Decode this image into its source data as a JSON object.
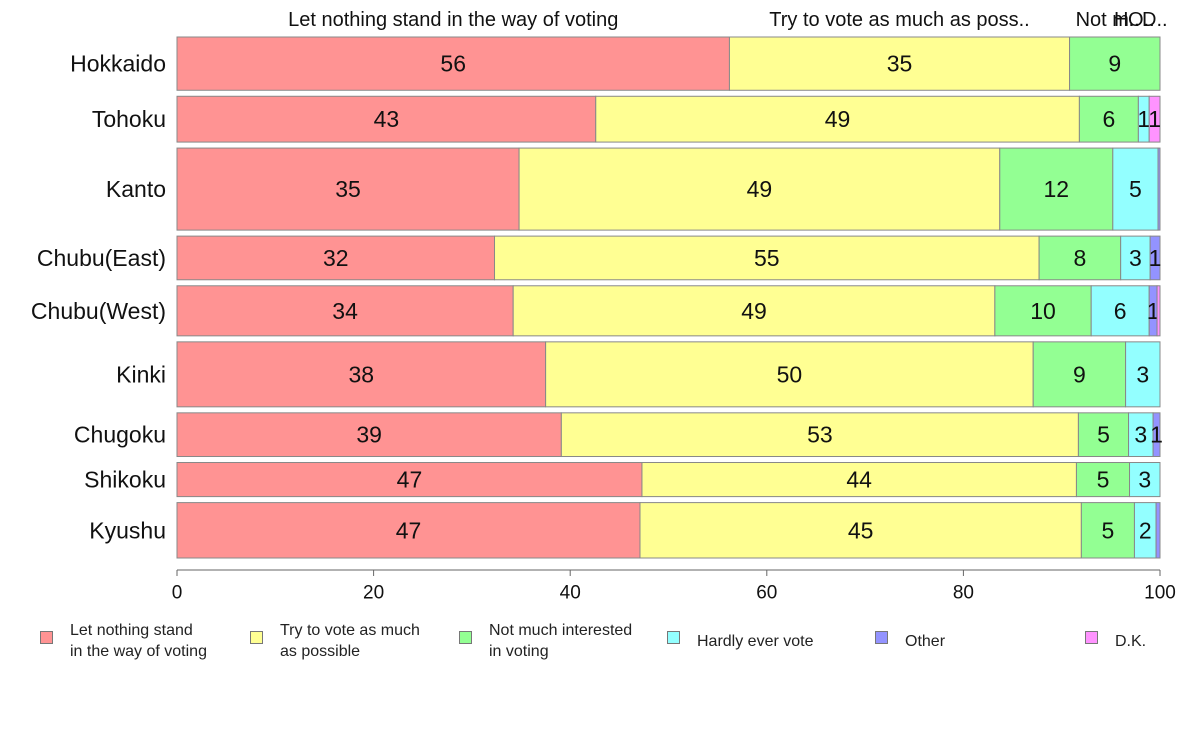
{
  "chart_data": {
    "type": "bar",
    "orientation": "horizontal",
    "stacked": true,
    "categories": [
      "Hokkaido",
      "Tohoku",
      "Kanto",
      "Chubu(East)",
      "Chubu(West)",
      "Kinki",
      "Chugoku",
      "Shikoku",
      "Kyushu"
    ],
    "series": [
      {
        "name": "Let nothing stand\nin the way of voting",
        "top_label": "Let nothing stand in the way of voting",
        "color": "#FF9393",
        "values": [
          56.2,
          42.6,
          34.8,
          32.3,
          34.2,
          37.5,
          39.1,
          47.3,
          47.1
        ],
        "labels": [
          "56",
          "43",
          "35",
          "32",
          "34",
          "38",
          "39",
          "47",
          "47"
        ]
      },
      {
        "name": "Try to vote as much\nas possible",
        "top_label": "Try to vote as much as poss..",
        "color": "#FFFF93",
        "values": [
          34.6,
          49.2,
          48.9,
          55.4,
          49.0,
          49.6,
          52.6,
          44.2,
          44.9
        ],
        "labels": [
          "35",
          "49",
          "49",
          "55",
          "49",
          "50",
          "53",
          "44",
          "45"
        ]
      },
      {
        "name": "Not much interested\nin voting",
        "top_label": "Not m..",
        "color": "#93FF93",
        "values": [
          9.2,
          6.0,
          11.5,
          8.3,
          9.8,
          9.4,
          5.1,
          5.4,
          5.4
        ],
        "labels": [
          "9",
          "6",
          "12",
          "8",
          "10",
          "9",
          "5",
          "5",
          "5"
        ]
      },
      {
        "name": "Hardly ever vote",
        "top_label": "H..",
        "color": "#93FFFF",
        "values": [
          0.0,
          1.1,
          4.6,
          3.0,
          5.9,
          3.5,
          2.5,
          3.1,
          2.2
        ],
        "labels": [
          "",
          "1",
          "5",
          "3",
          "6",
          "3",
          "3",
          "3",
          "2"
        ]
      },
      {
        "name": "Other",
        "top_label": "O..",
        "color": "#9393FF",
        "values": [
          0.0,
          0.0,
          0.2,
          1.0,
          0.8,
          0.0,
          0.7,
          0.0,
          0.4
        ],
        "labels": [
          "",
          "",
          "",
          "1",
          "1",
          "",
          "1",
          "",
          ""
        ]
      },
      {
        "name": "D.K.",
        "top_label": "D..",
        "color": "#FF93FF",
        "values": [
          0.0,
          1.1,
          0.0,
          0.0,
          0.3,
          0.0,
          0.0,
          0.0,
          0.0
        ],
        "labels": [
          "",
          "1",
          "",
          "",
          "",
          "",
          "",
          "",
          ""
        ]
      }
    ],
    "row_weights": [
      1.0,
      0.86,
      1.54,
      0.82,
      0.94,
      1.22,
      0.82,
      0.64,
      1.04
    ],
    "xlim": [
      0,
      100
    ],
    "xticks": [
      "0",
      "20",
      "40",
      "60",
      "80",
      "100"
    ],
    "grid": false,
    "legend_position": "bottom"
  }
}
